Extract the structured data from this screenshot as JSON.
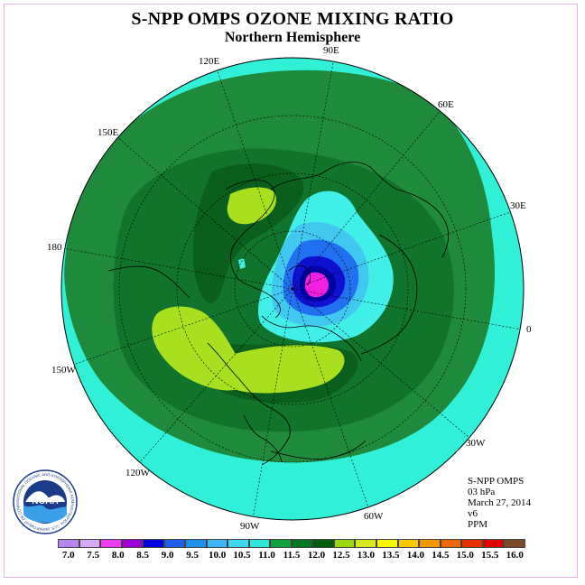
{
  "header": {
    "title": "S-NPP OMPS OZONE MIXING RATIO",
    "subtitle": "Northern Hemisphere"
  },
  "longitude_labels": {
    "e120": "120E",
    "e90": "90E",
    "e60": "60E",
    "e150": "150E",
    "e30": "30E",
    "l180": "180",
    "l0": "0",
    "w150": "150W",
    "w30": "30W",
    "w120": "120W",
    "w60": "60W",
    "w90": "90W"
  },
  "info": {
    "line1": "S-NPP OMPS",
    "line2": "03 hPa",
    "line3": "March 27, 2014",
    "line4": "v6",
    "line5": "PPM"
  },
  "logo": {
    "text": "NOAA",
    "ring_text": "NATIONAL OCEANIC AND ATMOSPHERIC ADMINISTRATION · U.S. DEPARTMENT OF COMMERCE"
  },
  "colorbar": {
    "labels": [
      "7.0",
      "7.5",
      "8.0",
      "8.5",
      "9.0",
      "9.5",
      "10.0",
      "10.5",
      "11.0",
      "11.5",
      "12.0",
      "12.5",
      "13.0",
      "13.5",
      "14.0",
      "14.5",
      "15.0",
      "15.5",
      "16.0"
    ],
    "colors": [
      "#b884f0",
      "#d8a8f4",
      "#f03cf0",
      "#a000d8",
      "#0000e0",
      "#2060f0",
      "#2090f0",
      "#40b4f8",
      "#40d8f0",
      "#2ce8d8",
      "#10a040",
      "#007820",
      "#006010",
      "#9cd810",
      "#d8e820",
      "#f8f800",
      "#f8c800",
      "#f09800",
      "#f06800",
      "#e83000",
      "#e00000",
      "#7a4a2a"
    ]
  },
  "map_colors": {
    "outer": "#30f0d8",
    "ring1": "#208a3c",
    "ring2": "#10742c",
    "ring3": "#0a5e1e",
    "yellowgreen": "#a8e020",
    "lightblue": "#40c8f0",
    "blue": "#2070f0",
    "darkblue": "#1010d0",
    "navy": "#0000a0",
    "magenta": "#f020e0",
    "cyan": "#40f0e8"
  }
}
